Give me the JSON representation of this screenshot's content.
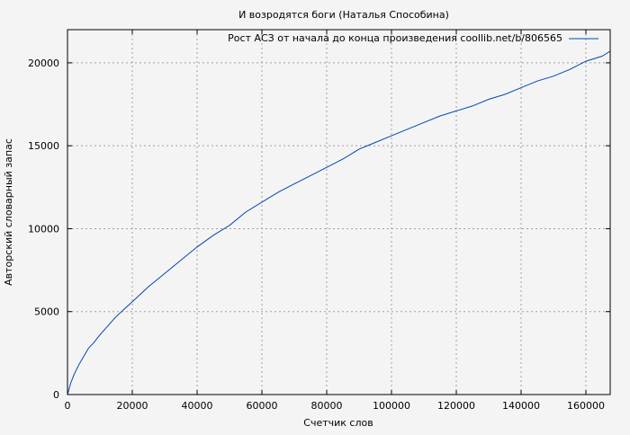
{
  "chart_data": {
    "type": "line",
    "title": "И возродятся боги (Наталья Способина)",
    "xlabel": "Счетчик слов",
    "ylabel": "Авторский словарный запас",
    "xlim": [
      0,
      167500
    ],
    "ylim": [
      0,
      22000
    ],
    "xticks": [
      0,
      20000,
      40000,
      60000,
      80000,
      100000,
      120000,
      140000,
      160000
    ],
    "yticks": [
      0,
      5000,
      10000,
      15000,
      20000
    ],
    "grid": true,
    "legend_position": "top-right",
    "series": [
      {
        "name": "Рост АСЗ от начала до конца произведения coollib.net/b/806565",
        "color": "#0047b3",
        "x": [
          0,
          1000,
          2000,
          3500,
          5000,
          6500,
          8000,
          10000,
          12500,
          15000,
          17500,
          20000,
          25000,
          30000,
          35000,
          40000,
          45000,
          50000,
          55000,
          60000,
          65000,
          70000,
          75000,
          80000,
          85000,
          90000,
          95000,
          100000,
          105000,
          110000,
          115000,
          120000,
          125000,
          130000,
          135000,
          140000,
          145000,
          150000,
          155000,
          160000,
          165000,
          167500
        ],
        "y": [
          0,
          700,
          1200,
          1800,
          2300,
          2800,
          3100,
          3600,
          4150,
          4700,
          5150,
          5600,
          6500,
          7300,
          8100,
          8900,
          9600,
          10200,
          11000,
          11600,
          12200,
          12700,
          13200,
          13700,
          14200,
          14800,
          15200,
          15600,
          16000,
          16400,
          16800,
          17100,
          17400,
          17800,
          18100,
          18500,
          18900,
          19200,
          19600,
          20100,
          20400,
          20700
        ]
      }
    ]
  }
}
